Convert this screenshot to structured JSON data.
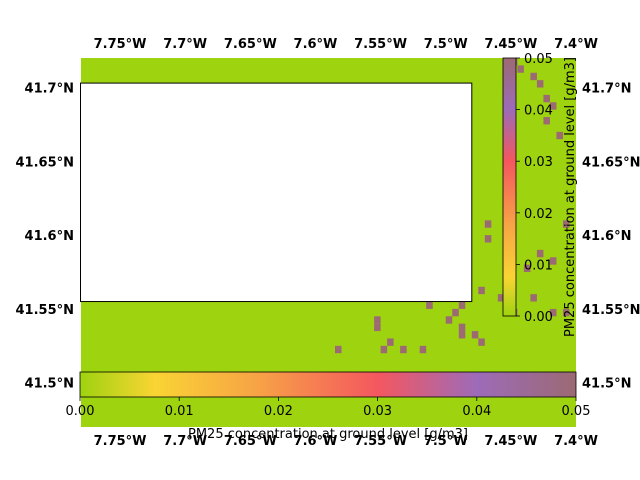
{
  "chart_data": {
    "type": "heatmap",
    "title": "",
    "map": {
      "lon_range": [
        -7.78,
        -7.4
      ],
      "lat_range": [
        41.47,
        41.72
      ],
      "lon_ticks": [
        "7.75°W",
        "7.7°W",
        "7.65°W",
        "7.6°W",
        "7.55°W",
        "7.5°W",
        "7.45°W",
        "7.4°W"
      ],
      "lon_tick_values": [
        -7.75,
        -7.7,
        -7.65,
        -7.6,
        -7.55,
        -7.5,
        -7.45,
        -7.4
      ],
      "lat_ticks": [
        "41.7°N",
        "41.65°N",
        "41.6°N",
        "41.55°N",
        "41.5°N"
      ],
      "lat_tick_values": [
        41.7,
        41.65,
        41.6,
        41.55,
        41.5
      ],
      "background_color": "#9ed30f",
      "white_region": {
        "lon": [
          -7.78,
          -7.48
        ],
        "lat": [
          41.555,
          41.703
        ]
      },
      "high_color": "#9c6a73",
      "high_value": 0.05,
      "high_cells": [
        [
          -7.4475,
          41.7175
        ],
        [
          -7.4425,
          41.7125
        ],
        [
          -7.4325,
          41.7075
        ],
        [
          -7.4275,
          41.7025
        ],
        [
          -7.4225,
          41.6925
        ],
        [
          -7.4175,
          41.6875
        ],
        [
          -7.4225,
          41.6775
        ],
        [
          -7.4125,
          41.6675
        ],
        [
          -7.4525,
          41.6225
        ],
        [
          -7.4675,
          41.6075
        ],
        [
          -7.4675,
          41.5975
        ],
        [
          -7.4275,
          41.5875
        ],
        [
          -7.4175,
          41.5825
        ],
        [
          -7.4075,
          41.6075
        ],
        [
          -7.4375,
          41.5775
        ],
        [
          -7.4725,
          41.5625
        ],
        [
          -7.4475,
          41.5475
        ],
        [
          -7.4175,
          41.5475
        ],
        [
          -7.4075,
          41.5475
        ],
        [
          -7.4875,
          41.5525
        ],
        [
          -7.5125,
          41.5525
        ],
        [
          -7.4925,
          41.5475
        ],
        [
          -7.4975,
          41.5425
        ],
        [
          -7.4875,
          41.5375
        ],
        [
          -7.4775,
          41.5325
        ],
        [
          -7.4875,
          41.5325
        ],
        [
          -7.5525,
          41.5425
        ],
        [
          -7.5525,
          41.5375
        ],
        [
          -7.5425,
          41.5275
        ],
        [
          -7.5475,
          41.5225
        ],
        [
          -7.5825,
          41.5225
        ],
        [
          -7.5325,
          41.5225
        ],
        [
          -7.5175,
          41.5225
        ],
        [
          -7.4725,
          41.5275
        ],
        [
          -7.4575,
          41.5575
        ],
        [
          -7.4325,
          41.5575
        ]
      ],
      "cell_size": [
        0.005,
        0.005
      ]
    },
    "colorbar_horizontal": {
      "label": "PM25 concentration at ground level [g/m3]",
      "range": [
        0.0,
        0.05
      ],
      "ticks": [
        "0.00",
        "0.01",
        "0.02",
        "0.03",
        "0.04",
        "0.05"
      ],
      "tick_values": [
        0.0,
        0.01,
        0.02,
        0.03,
        0.04,
        0.05
      ]
    },
    "colorbar_vertical": {
      "label": "PM25 concentration at ground level [g/m3]",
      "range": [
        0.0,
        0.05
      ],
      "ticks": [
        "0.00",
        "0.01",
        "0.02",
        "0.03",
        "0.04",
        "0.05"
      ],
      "tick_values": [
        0.0,
        0.01,
        0.02,
        0.03,
        0.04,
        0.05
      ]
    },
    "colormap": [
      [
        0.0,
        "#9ed30f"
      ],
      [
        0.0075,
        "#f9d433"
      ],
      [
        0.0175,
        "#f7a545"
      ],
      [
        0.03,
        "#f4575f"
      ],
      [
        0.04,
        "#9d6bb8"
      ],
      [
        0.05,
        "#9c6a73"
      ]
    ]
  }
}
